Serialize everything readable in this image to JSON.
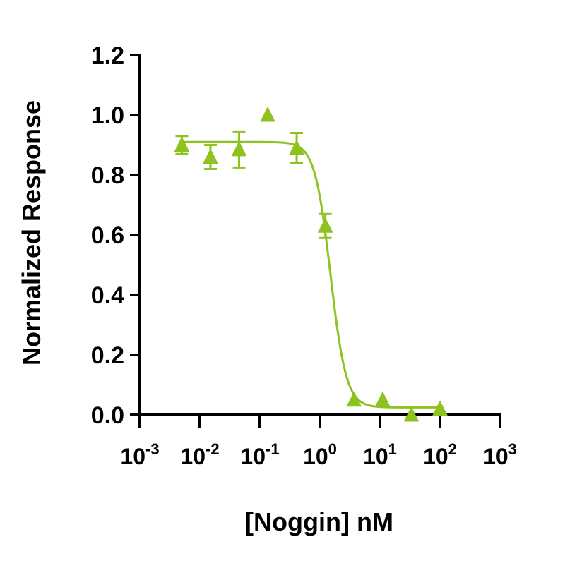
{
  "chart_data": {
    "type": "scatter",
    "title": "",
    "xlabel": "[Noggin] nM",
    "ylabel": "Normalized Response",
    "x_scale": "log",
    "xlim": [
      0.001,
      1000
    ],
    "ylim": [
      0,
      1.2
    ],
    "x_ticks": [
      {
        "value": 0.001,
        "base": "10",
        "exp": "-3"
      },
      {
        "value": 0.01,
        "base": "10",
        "exp": "-2"
      },
      {
        "value": 0.1,
        "base": "10",
        "exp": "-1"
      },
      {
        "value": 1,
        "base": "10",
        "exp": "0"
      },
      {
        "value": 10,
        "base": "10",
        "exp": "1"
      },
      {
        "value": 100,
        "base": "10",
        "exp": "2"
      },
      {
        "value": 1000,
        "base": "10",
        "exp": "3"
      }
    ],
    "y_ticks": [
      "0.0",
      "0.2",
      "0.4",
      "0.6",
      "0.8",
      "1.0",
      "1.2"
    ],
    "grid": false,
    "legend": "none",
    "color": "#8dc21f",
    "series": [
      {
        "marker": "triangle",
        "points": [
          {
            "x": 0.005,
            "y": 0.9,
            "err": 0.03
          },
          {
            "x": 0.015,
            "y": 0.86,
            "err": 0.04
          },
          {
            "x": 0.045,
            "y": 0.885,
            "err": 0.06
          },
          {
            "x": 0.135,
            "y": 1.0,
            "err": 0
          },
          {
            "x": 0.41,
            "y": 0.89,
            "err": 0.05
          },
          {
            "x": 1.23,
            "y": 0.63,
            "err": 0.04
          },
          {
            "x": 3.7,
            "y": 0.05,
            "err": 0
          },
          {
            "x": 11.1,
            "y": 0.05,
            "err": 0
          },
          {
            "x": 33.3,
            "y": 0.0,
            "err": 0
          },
          {
            "x": 100,
            "y": 0.02,
            "err": 0
          }
        ]
      }
    ],
    "fit": {
      "model": "4PL",
      "top": 0.91,
      "bottom": 0.025,
      "ic50": 1.5,
      "hill": 3.3
    }
  }
}
